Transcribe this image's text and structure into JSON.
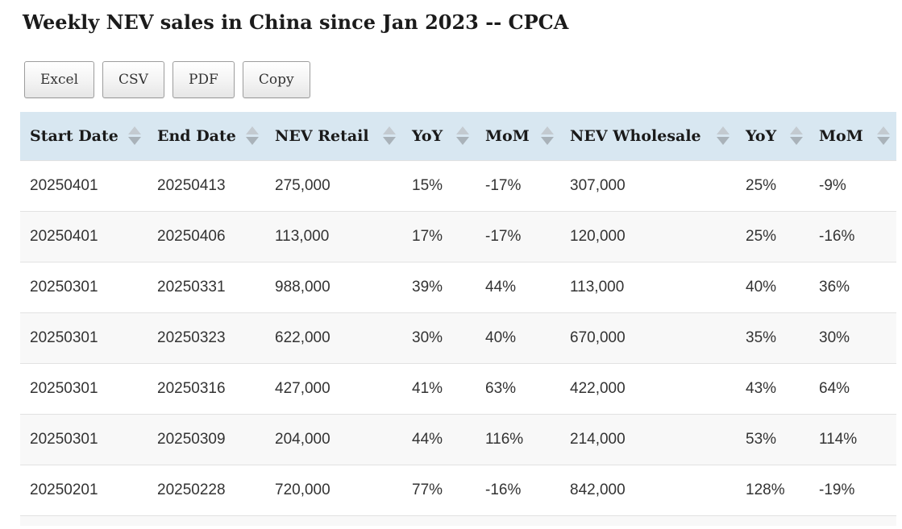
{
  "title": "Weekly NEV sales in China since Jan 2023 -- CPCA",
  "toolbar": {
    "buttons": [
      "Excel",
      "CSV",
      "PDF",
      "Copy"
    ]
  },
  "table": {
    "columns": [
      "Start Date",
      "End Date",
      "NEV Retail",
      "YoY",
      "MoM",
      "NEV Wholesale",
      "YoY",
      "MoM"
    ],
    "rows": [
      [
        "20250401",
        "20250413",
        "275,000",
        "15%",
        "-17%",
        "307,000",
        "25%",
        "-9%"
      ],
      [
        "20250401",
        "20250406",
        "113,000",
        "17%",
        "-17%",
        "120,000",
        "25%",
        "-16%"
      ],
      [
        "20250301",
        "20250331",
        "988,000",
        "39%",
        "44%",
        "113,000",
        "40%",
        "36%"
      ],
      [
        "20250301",
        "20250323",
        "622,000",
        "30%",
        "40%",
        "670,000",
        "35%",
        "30%"
      ],
      [
        "20250301",
        "20250316",
        "427,000",
        "41%",
        "63%",
        "422,000",
        "43%",
        "64%"
      ],
      [
        "20250301",
        "20250309",
        "204,000",
        "44%",
        "116%",
        "214,000",
        "53%",
        "114%"
      ],
      [
        "20250201",
        "20250228",
        "720,000",
        "77%",
        "-16%",
        "842,000",
        "128%",
        "-19%"
      ]
    ]
  },
  "colors": {
    "header_background": "#d8e7f1",
    "row_stripe": "#f8f8f8",
    "row_border": "#e2e2e2",
    "sort_arrow_up": "#c3cad0",
    "sort_arrow_down": "#a9b2b9",
    "body_text": "#333333",
    "heading_text": "#1b1b1b"
  }
}
